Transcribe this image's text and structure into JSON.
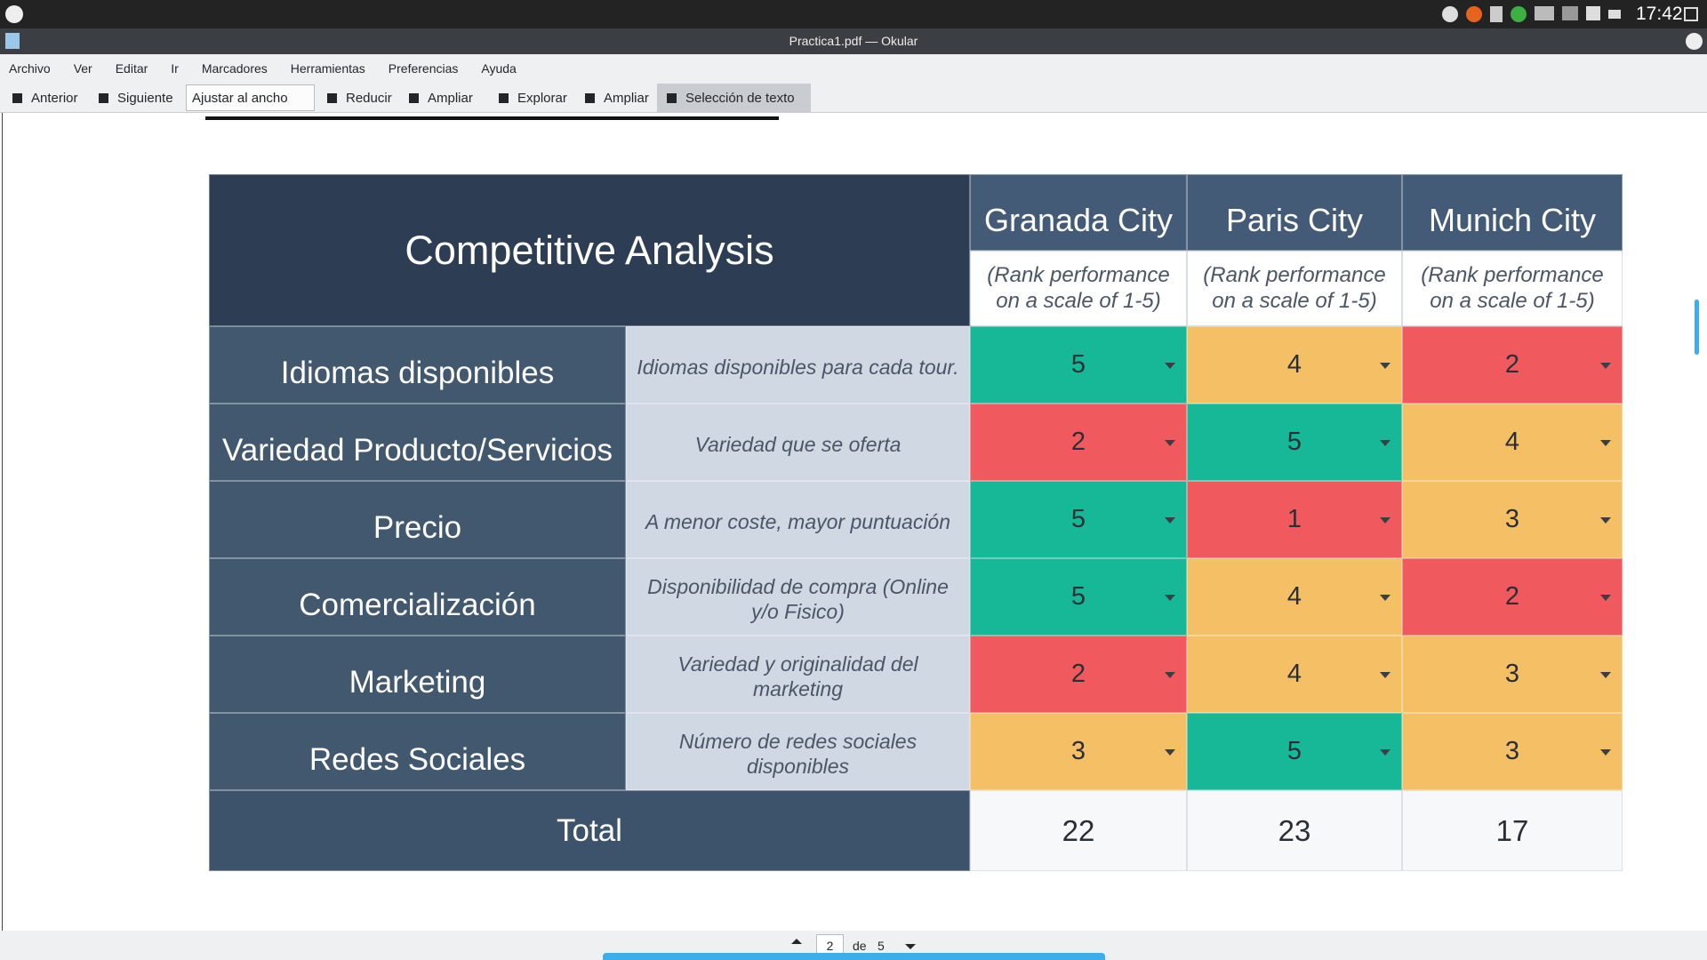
{
  "system_bar": {
    "clock": "17:42"
  },
  "window": {
    "title": "Practica1.pdf — Okular"
  },
  "menu": [
    "Archivo",
    "Ver",
    "Editar",
    "Ir",
    "Marcadores",
    "Herramientas",
    "Preferencias",
    "Ayuda"
  ],
  "toolbar": {
    "previous": "Anterior",
    "next": "Siguiente",
    "zoom_mode": "Ajustar al ancho",
    "zoom_out": "Reducir",
    "zoom_in": "Ampliar",
    "browse": "Explorar",
    "zoom_tool": "Ampliar",
    "text_selection": "Selección de texto"
  },
  "table": {
    "title": "Competitive Analysis",
    "columns": [
      "Granada City",
      "Paris City",
      "Munich City"
    ],
    "column_note": "(Rank performance on a scale of 1-5)",
    "rows": [
      {
        "label": "Idiomas disponibles",
        "description": "Idiomas disponibles para cada tour.",
        "scores": [
          5,
          4,
          2
        ],
        "colors": [
          "#17b897",
          "#f5bf66",
          "#f05a5f"
        ]
      },
      {
        "label": "Variedad Producto/Servicios",
        "description": "Variedad que se oferta",
        "scores": [
          2,
          5,
          4
        ],
        "colors": [
          "#f05a5f",
          "#17b897",
          "#f5bf66"
        ]
      },
      {
        "label": "Precio",
        "description": "A menor coste, mayor puntuación",
        "scores": [
          5,
          1,
          3
        ],
        "colors": [
          "#17b897",
          "#f05a5f",
          "#f5bf66"
        ]
      },
      {
        "label": "Comercialización",
        "description": "Disponibilidad de compra (Online y/o Fisico)",
        "scores": [
          5,
          4,
          2
        ],
        "colors": [
          "#17b897",
          "#f5bf66",
          "#f05a5f"
        ]
      },
      {
        "label": "Marketing",
        "description": "Variedad y originalidad del marketing",
        "scores": [
          2,
          4,
          3
        ],
        "colors": [
          "#f05a5f",
          "#f5bf66",
          "#f5bf66"
        ]
      },
      {
        "label": "Redes Sociales",
        "description": "Número de redes sociales disponibles",
        "scores": [
          3,
          5,
          3
        ],
        "colors": [
          "#f5bf66",
          "#17b897",
          "#f5bf66"
        ]
      }
    ],
    "total_label": "Total",
    "totals": [
      22,
      23,
      17
    ]
  },
  "pager": {
    "page": "2",
    "of": "de",
    "pages": "5"
  }
}
